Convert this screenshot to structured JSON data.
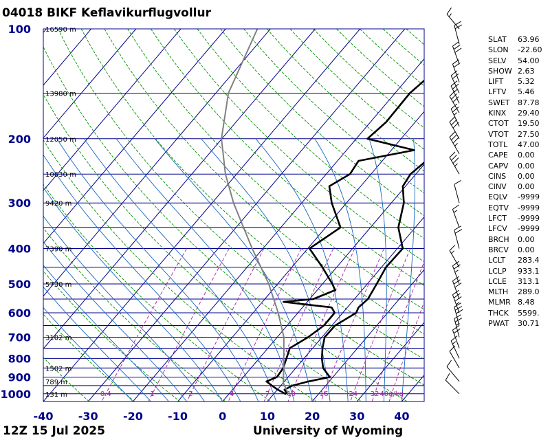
{
  "header": {
    "title": "04018 BIKF Keflavikurflugvollur"
  },
  "footer": {
    "date": "12Z 15 Jul 2025",
    "source": "University of Wyoming"
  },
  "colors": {
    "isobar": "#00008b",
    "isotherm": "#00008b",
    "dry_adiabat": "#009000",
    "moist_adiabat": "#1565c0",
    "mixing_ratio": "#a020a0",
    "parcel": "#808080",
    "sounding": "#000000",
    "pressure_label": "#00008b",
    "temperature_label": "#00008b"
  },
  "chart_data": {
    "type": "skew-t",
    "pressure_ticks": [
      100,
      200,
      300,
      400,
      500,
      600,
      700,
      800,
      900,
      1000
    ],
    "temperature_ticks": [
      -40,
      -30,
      -20,
      -10,
      0,
      10,
      20,
      30,
      40
    ],
    "xlim": [
      -40,
      45
    ],
    "ylim_hpa": [
      1050,
      100
    ],
    "height_labels": [
      {
        "p": 100,
        "text": "16590 m"
      },
      {
        "p": 150,
        "text": "13980 m"
      },
      {
        "p": 200,
        "text": "12050 m"
      },
      {
        "p": 250,
        "text": "10630 m"
      },
      {
        "p": 300,
        "text": "9420 m"
      },
      {
        "p": 400,
        "text": "7390 m"
      },
      {
        "p": 500,
        "text": "5730 m"
      },
      {
        "p": 700,
        "text": "3102 m"
      },
      {
        "p": 850,
        "text": "1502 m"
      },
      {
        "p": 925,
        "text": "789 m"
      },
      {
        "p": 1000,
        "text": "131 m"
      }
    ],
    "mixing_ratio_labels": [
      "0.4",
      "1",
      "2",
      "4",
      "7",
      "10",
      "16",
      "24",
      "32",
      "40g/kg"
    ],
    "mixing_ratio_values": [
      0.4,
      1,
      2,
      4,
      7,
      10,
      16,
      24,
      32,
      40
    ],
    "series": [
      {
        "name": "Temperature",
        "points": [
          [
            1003,
            13.2
          ],
          [
            1000,
            13.0
          ],
          [
            975,
            11.6
          ],
          [
            950,
            12.6
          ],
          [
            925,
            15.4
          ],
          [
            900,
            19.3
          ],
          [
            850,
            16.1
          ],
          [
            800,
            14.0
          ],
          [
            750,
            12.2
          ],
          [
            700,
            10.6
          ],
          [
            650,
            10.7
          ],
          [
            600,
            13.0
          ],
          [
            580,
            12.5
          ],
          [
            550,
            13.0
          ],
          [
            500,
            12.1
          ],
          [
            450,
            11.0
          ],
          [
            400,
            11.2
          ],
          [
            350,
            6.2
          ],
          [
            300,
            2.8
          ],
          [
            270,
            -0.6
          ],
          [
            250,
            -1.2
          ],
          [
            230,
            -0.2
          ],
          [
            215,
            3.4
          ],
          [
            205,
            9.3
          ],
          [
            195,
            17.2
          ],
          [
            150,
            27.1
          ],
          [
            100,
            33.0
          ]
        ]
      },
      {
        "name": "Dewpoint",
        "points": [
          [
            1003,
            12.8
          ],
          [
            975,
            10.1
          ],
          [
            950,
            8.0
          ],
          [
            925,
            6.0
          ],
          [
            900,
            7.5
          ],
          [
            850,
            7.2
          ],
          [
            750,
            4.9
          ],
          [
            700,
            6.9
          ],
          [
            650,
            8.2
          ],
          [
            600,
            8.2
          ],
          [
            580,
            6.5
          ],
          [
            560,
            -5.3
          ],
          [
            550,
            0.8
          ],
          [
            520,
            4.0
          ],
          [
            500,
            2.2
          ],
          [
            450,
            -3.2
          ],
          [
            400,
            -9.6
          ],
          [
            350,
            -6.7
          ],
          [
            300,
            -13.3
          ],
          [
            270,
            -17.0
          ],
          [
            250,
            -14.7
          ],
          [
            230,
            -15.3
          ],
          [
            215,
            -4.9
          ],
          [
            200,
            -17.5
          ],
          [
            180,
            -16.5
          ],
          [
            150,
            -16.7
          ],
          [
            100,
            -12.5
          ]
        ]
      },
      {
        "name": "Parcel",
        "points": [
          [
            1000,
            13.2
          ],
          [
            933,
            10.0
          ],
          [
            850,
            7.3
          ],
          [
            700,
            1.5
          ],
          [
            600,
            -4.4
          ],
          [
            500,
            -12.0
          ],
          [
            400,
            -22.4
          ],
          [
            300,
            -35.2
          ],
          [
            250,
            -42.5
          ],
          [
            200,
            -50.1
          ],
          [
            150,
            -57.2
          ],
          [
            100,
            -62.9
          ]
        ]
      }
    ],
    "wind_barbs": [
      {
        "p": 1000,
        "dir": 315,
        "spd": 10
      },
      {
        "p": 925,
        "dir": 320,
        "spd": 10
      },
      {
        "p": 850,
        "dir": 330,
        "spd": 10
      },
      {
        "p": 800,
        "dir": 335,
        "spd": 15
      },
      {
        "p": 750,
        "dir": 340,
        "spd": 20
      },
      {
        "p": 700,
        "dir": 345,
        "spd": 25
      },
      {
        "p": 650,
        "dir": 345,
        "spd": 30
      },
      {
        "p": 600,
        "dir": 340,
        "spd": 35
      },
      {
        "p": 550,
        "dir": 340,
        "spd": 30
      },
      {
        "p": 500,
        "dir": 340,
        "spd": 25
      },
      {
        "p": 450,
        "dir": 330,
        "spd": 15
      },
      {
        "p": 400,
        "dir": 345,
        "spd": 20
      },
      {
        "p": 350,
        "dir": 340,
        "spd": 15
      },
      {
        "p": 300,
        "dir": 345,
        "spd": 10
      },
      {
        "p": 250,
        "dir": 330,
        "spd": 35
      },
      {
        "p": 220,
        "dir": 330,
        "spd": 35
      },
      {
        "p": 200,
        "dir": 330,
        "spd": 30
      },
      {
        "p": 185,
        "dir": 335,
        "spd": 25
      },
      {
        "p": 170,
        "dir": 330,
        "spd": 30
      },
      {
        "p": 160,
        "dir": 335,
        "spd": 25
      },
      {
        "p": 150,
        "dir": 335,
        "spd": 20
      },
      {
        "p": 140,
        "dir": 340,
        "spd": 20
      },
      {
        "p": 125,
        "dir": 340,
        "spd": 30
      },
      {
        "p": 110,
        "dir": 345,
        "spd": 20
      },
      {
        "p": 100,
        "dir": 320,
        "spd": 15
      }
    ]
  },
  "indices": [
    {
      "name": "SLAT",
      "value": "63.96"
    },
    {
      "name": "SLON",
      "value": "-22.60"
    },
    {
      "name": "SELV",
      "value": "54.00"
    },
    {
      "name": "SHOW",
      "value": "2.63"
    },
    {
      "name": "LIFT",
      "value": "5.32"
    },
    {
      "name": "LFTV",
      "value": "5.46"
    },
    {
      "name": "SWET",
      "value": "87.78"
    },
    {
      "name": "KINX",
      "value": "29.40"
    },
    {
      "name": "CTOT",
      "value": "19.50"
    },
    {
      "name": "VTOT",
      "value": "27.50"
    },
    {
      "name": "TOTL",
      "value": "47.00"
    },
    {
      "name": "CAPE",
      "value": "0.00"
    },
    {
      "name": "CAPV",
      "value": "0.00"
    },
    {
      "name": "CINS",
      "value": "0.00"
    },
    {
      "name": "CINV",
      "value": "0.00"
    },
    {
      "name": "EQLV",
      "value": "-9999"
    },
    {
      "name": "EQTV",
      "value": "-9999"
    },
    {
      "name": "LFCT",
      "value": "-9999"
    },
    {
      "name": "LFCV",
      "value": "-9999"
    },
    {
      "name": "BRCH",
      "value": "0.00"
    },
    {
      "name": "BRCV",
      "value": "0.00"
    },
    {
      "name": "LCLT",
      "value": "283.4"
    },
    {
      "name": "LCLP",
      "value": "933.1"
    },
    {
      "name": "LCLE",
      "value": "313.1"
    },
    {
      "name": "MLTH",
      "value": "289.0"
    },
    {
      "name": "MLMR",
      "value": "8.48"
    },
    {
      "name": "THCK",
      "value": "5599."
    },
    {
      "name": "PWAT",
      "value": "30.71"
    }
  ]
}
